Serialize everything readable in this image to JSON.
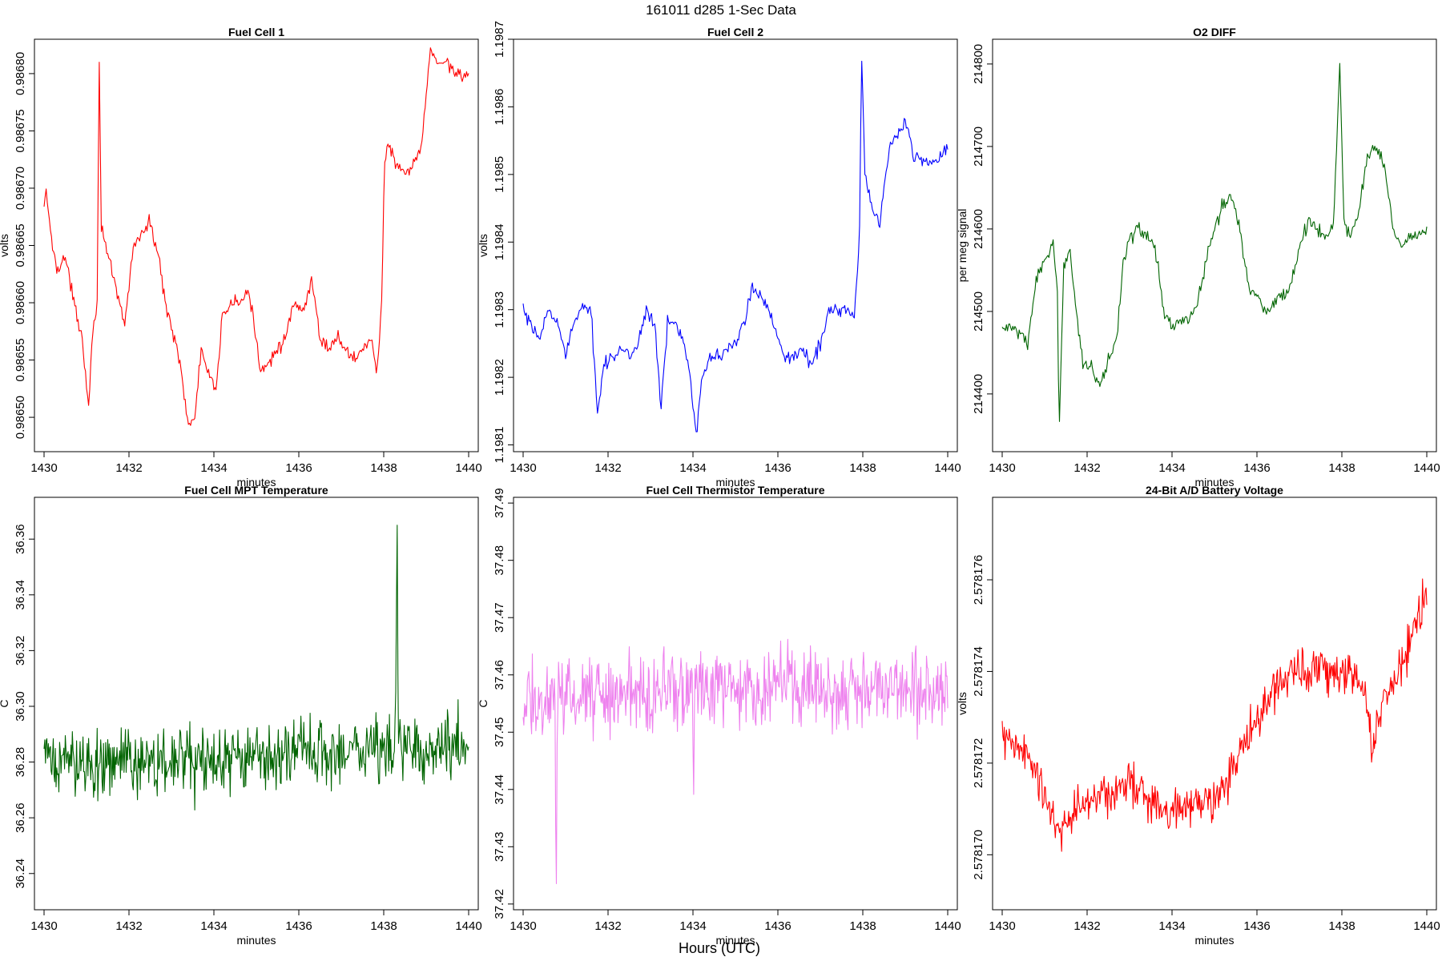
{
  "header": {
    "title": "161011    d285    1-Sec Data"
  },
  "footer": {
    "xlabel": "Hours (UTC)"
  },
  "chart_data": [
    {
      "type": "line",
      "title": "Fuel Cell 1",
      "xlabel": "minutes",
      "ylabel": "volts",
      "color": "#ff0000",
      "xlim": [
        1430,
        1440
      ],
      "ylim": [
        0.98647,
        0.98683
      ],
      "xticks": [
        1430,
        1432,
        1434,
        1436,
        1438,
        1440
      ],
      "yticks": [
        "0.98650",
        "0.98655",
        "0.98660",
        "0.98665",
        "0.98670",
        "0.98675",
        "0.98680"
      ],
      "keypoints": [
        [
          1430.0,
          0.98668
        ],
        [
          1430.05,
          0.9867
        ],
        [
          1430.15,
          0.98666
        ],
        [
          1430.3,
          0.98663
        ],
        [
          1430.5,
          0.98664
        ],
        [
          1430.7,
          0.9866
        ],
        [
          1430.9,
          0.98657
        ],
        [
          1431.05,
          0.98651
        ],
        [
          1431.15,
          0.98658
        ],
        [
          1431.25,
          0.9866
        ],
        [
          1431.3,
          0.98681
        ],
        [
          1431.35,
          0.98667
        ],
        [
          1431.5,
          0.98664
        ],
        [
          1431.7,
          0.98661
        ],
        [
          1431.9,
          0.98658
        ],
        [
          1432.1,
          0.98665
        ],
        [
          1432.3,
          0.98666
        ],
        [
          1432.5,
          0.98667
        ],
        [
          1432.7,
          0.98664
        ],
        [
          1432.85,
          0.9866
        ],
        [
          1433.0,
          0.98658
        ],
        [
          1433.2,
          0.98655
        ],
        [
          1433.4,
          0.98649
        ],
        [
          1433.55,
          0.9865
        ],
        [
          1433.7,
          0.98656
        ],
        [
          1433.85,
          0.98654
        ],
        [
          1434.05,
          0.98652
        ],
        [
          1434.2,
          0.98659
        ],
        [
          1434.4,
          0.9866
        ],
        [
          1434.6,
          0.9866
        ],
        [
          1434.8,
          0.98661
        ],
        [
          1435.0,
          0.98657
        ],
        [
          1435.1,
          0.98654
        ],
        [
          1435.3,
          0.98655
        ],
        [
          1435.5,
          0.98656
        ],
        [
          1435.7,
          0.98657
        ],
        [
          1435.9,
          0.9866
        ],
        [
          1436.1,
          0.98659
        ],
        [
          1436.3,
          0.98662
        ],
        [
          1436.5,
          0.98657
        ],
        [
          1436.7,
          0.98656
        ],
        [
          1436.9,
          0.98657
        ],
        [
          1437.1,
          0.98656
        ],
        [
          1437.3,
          0.98655
        ],
        [
          1437.5,
          0.98656
        ],
        [
          1437.7,
          0.98657
        ],
        [
          1437.85,
          0.98654
        ],
        [
          1437.95,
          0.9866
        ],
        [
          1438.02,
          0.98672
        ],
        [
          1438.1,
          0.98674
        ],
        [
          1438.3,
          0.98672
        ],
        [
          1438.5,
          0.98671
        ],
        [
          1438.7,
          0.98672
        ],
        [
          1438.9,
          0.98674
        ],
        [
          1439.0,
          0.98678
        ],
        [
          1439.1,
          0.98682
        ],
        [
          1439.3,
          0.98681
        ],
        [
          1439.5,
          0.98681
        ],
        [
          1439.7,
          0.9868
        ],
        [
          1439.9,
          0.9868
        ]
      ]
    },
    {
      "type": "line",
      "title": "Fuel Cell 2",
      "xlabel": "minutes",
      "ylabel": "volts",
      "color": "#0000ff",
      "xlim": [
        1430,
        1440
      ],
      "ylim": [
        1.19809,
        1.1987
      ],
      "xticks": [
        1430,
        1432,
        1434,
        1436,
        1438,
        1440
      ],
      "yticks": [
        "1.1981",
        "1.1982",
        "1.1983",
        "1.1984",
        "1.1985",
        "1.1986",
        "1.1987"
      ],
      "keypoints": [
        [
          1430.0,
          1.1983
        ],
        [
          1430.2,
          1.19827
        ],
        [
          1430.4,
          1.19826
        ],
        [
          1430.6,
          1.1983
        ],
        [
          1430.8,
          1.19828
        ],
        [
          1431.0,
          1.19824
        ],
        [
          1431.2,
          1.19828
        ],
        [
          1431.4,
          1.1983
        ],
        [
          1431.6,
          1.1983
        ],
        [
          1431.75,
          1.19815
        ],
        [
          1431.9,
          1.19822
        ],
        [
          1432.1,
          1.19823
        ],
        [
          1432.3,
          1.19824
        ],
        [
          1432.5,
          1.19823
        ],
        [
          1432.7,
          1.19825
        ],
        [
          1432.9,
          1.1983
        ],
        [
          1433.1,
          1.19828
        ],
        [
          1433.25,
          1.19815
        ],
        [
          1433.4,
          1.19828
        ],
        [
          1433.6,
          1.19828
        ],
        [
          1433.8,
          1.19825
        ],
        [
          1433.95,
          1.1982
        ],
        [
          1434.08,
          1.19811
        ],
        [
          1434.2,
          1.1982
        ],
        [
          1434.4,
          1.19823
        ],
        [
          1434.6,
          1.19823
        ],
        [
          1434.8,
          1.19824
        ],
        [
          1435.0,
          1.19825
        ],
        [
          1435.2,
          1.19828
        ],
        [
          1435.4,
          1.19833
        ],
        [
          1435.6,
          1.19832
        ],
        [
          1435.8,
          1.1983
        ],
        [
          1436.0,
          1.19826
        ],
        [
          1436.2,
          1.19823
        ],
        [
          1436.4,
          1.19823
        ],
        [
          1436.6,
          1.19824
        ],
        [
          1436.8,
          1.19822
        ],
        [
          1437.0,
          1.19825
        ],
        [
          1437.2,
          1.1983
        ],
        [
          1437.4,
          1.1983
        ],
        [
          1437.6,
          1.1983
        ],
        [
          1437.8,
          1.19829
        ],
        [
          1437.92,
          1.1984
        ],
        [
          1437.97,
          1.19868
        ],
        [
          1438.05,
          1.1985
        ],
        [
          1438.2,
          1.19845
        ],
        [
          1438.4,
          1.19843
        ],
        [
          1438.6,
          1.19853
        ],
        [
          1438.8,
          1.19856
        ],
        [
          1439.0,
          1.19858
        ],
        [
          1439.2,
          1.19853
        ],
        [
          1439.4,
          1.19852
        ],
        [
          1439.6,
          1.19852
        ],
        [
          1439.8,
          1.19852
        ],
        [
          1439.95,
          1.19854
        ]
      ]
    },
    {
      "type": "line",
      "title": "O2 DIFF",
      "xlabel": "minutes",
      "ylabel": "per meg signal",
      "color": "#006400",
      "xlim": [
        1430,
        1440
      ],
      "ylim": [
        214330,
        214830
      ],
      "xticks": [
        1430,
        1432,
        1434,
        1436,
        1438,
        1440
      ],
      "yticks": [
        "214400",
        "214500",
        "214600",
        "214700",
        "214800"
      ],
      "keypoints": [
        [
          1430.0,
          214480
        ],
        [
          1430.3,
          214480
        ],
        [
          1430.6,
          214460
        ],
        [
          1430.8,
          214540
        ],
        [
          1431.0,
          214560
        ],
        [
          1431.2,
          214580
        ],
        [
          1431.3,
          214520
        ],
        [
          1431.34,
          214345
        ],
        [
          1431.45,
          214560
        ],
        [
          1431.6,
          214570
        ],
        [
          1431.75,
          214500
        ],
        [
          1431.9,
          214440
        ],
        [
          1432.1,
          214430
        ],
        [
          1432.3,
          214410
        ],
        [
          1432.5,
          214440
        ],
        [
          1432.7,
          214470
        ],
        [
          1432.85,
          214560
        ],
        [
          1433.0,
          214590
        ],
        [
          1433.2,
          214600
        ],
        [
          1433.4,
          214590
        ],
        [
          1433.6,
          214580
        ],
        [
          1433.8,
          214500
        ],
        [
          1434.0,
          214480
        ],
        [
          1434.2,
          214490
        ],
        [
          1434.4,
          214490
        ],
        [
          1434.6,
          214510
        ],
        [
          1434.8,
          214560
        ],
        [
          1435.0,
          214600
        ],
        [
          1435.2,
          214630
        ],
        [
          1435.4,
          214640
        ],
        [
          1435.6,
          214600
        ],
        [
          1435.8,
          214530
        ],
        [
          1436.0,
          214520
        ],
        [
          1436.2,
          214500
        ],
        [
          1436.4,
          214510
        ],
        [
          1436.6,
          214520
        ],
        [
          1436.8,
          214530
        ],
        [
          1437.0,
          214580
        ],
        [
          1437.2,
          214610
        ],
        [
          1437.4,
          214600
        ],
        [
          1437.6,
          214590
        ],
        [
          1437.8,
          214600
        ],
        [
          1437.95,
          214800
        ],
        [
          1438.05,
          214610
        ],
        [
          1438.2,
          214590
        ],
        [
          1438.4,
          214620
        ],
        [
          1438.6,
          214690
        ],
        [
          1438.8,
          214700
        ],
        [
          1439.0,
          214680
        ],
        [
          1439.2,
          214600
        ],
        [
          1439.4,
          214580
        ],
        [
          1439.6,
          214590
        ],
        [
          1439.8,
          214590
        ],
        [
          1439.95,
          214600
        ]
      ]
    },
    {
      "type": "line",
      "title": "Fuel Cell MPT Temperature",
      "xlabel": "minutes",
      "ylabel": "C",
      "color": "#006400",
      "xlim": [
        1430,
        1440
      ],
      "ylim": [
        36.227,
        36.375
      ],
      "xticks": [
        1430,
        1432,
        1434,
        1436,
        1438,
        1440
      ],
      "yticks": [
        "36.24",
        "36.26",
        "36.28",
        "36.30",
        "36.32",
        "36.34",
        "36.36"
      ],
      "keypoints": [
        [
          1430.0,
          36.28
        ],
        [
          1434.0,
          36.28
        ],
        [
          1437.0,
          36.284
        ],
        [
          1438.28,
          36.286
        ],
        [
          1438.31,
          36.37
        ],
        [
          1438.34,
          36.286
        ],
        [
          1440.0,
          36.286
        ]
      ],
      "noise": 0.018
    },
    {
      "type": "line",
      "title": "Fuel Cell Thermistor Temperature",
      "xlabel": "minutes",
      "ylabel": "C",
      "color": "#ee82ee",
      "xlim": [
        1430,
        1440
      ],
      "ylim": [
        37.419,
        37.491
      ],
      "xticks": [
        1430,
        1432,
        1434,
        1436,
        1438,
        1440
      ],
      "yticks": [
        "37.42",
        "37.43",
        "37.44",
        "37.45",
        "37.46",
        "37.47",
        "37.48",
        "37.49"
      ],
      "keypoints": [
        [
          1430.0,
          37.455
        ],
        [
          1430.75,
          37.456
        ],
        [
          1430.78,
          37.422
        ],
        [
          1430.81,
          37.456
        ],
        [
          1433.98,
          37.458
        ],
        [
          1434.01,
          37.434
        ],
        [
          1434.04,
          37.458
        ],
        [
          1440.0,
          37.458
        ]
      ],
      "noise": 0.01
    },
    {
      "type": "line",
      "title": "24-Bit A/D Battery Voltage",
      "xlabel": "minutes",
      "ylabel": "volts",
      "color": "#ff0000",
      "xlim": [
        1430,
        1440
      ],
      "ylim": [
        2.5781688,
        2.5781778
      ],
      "xticks": [
        1430,
        1432,
        1434,
        1436,
        1438,
        1440
      ],
      "yticks": [
        "2.578170",
        "2.578172",
        "2.578174",
        "2.578176"
      ],
      "keypoints": [
        [
          1430.0,
          2.5781725
        ],
        [
          1430.6,
          2.5781722
        ],
        [
          1431.0,
          2.5781712
        ],
        [
          1431.4,
          2.5781705
        ],
        [
          1432.0,
          2.5781712
        ],
        [
          1433.0,
          2.5781715
        ],
        [
          1434.0,
          2.578171
        ],
        [
          1435.0,
          2.5781712
        ],
        [
          1435.5,
          2.578172
        ],
        [
          1436.0,
          2.578173
        ],
        [
          1436.5,
          2.5781738
        ],
        [
          1437.0,
          2.578174
        ],
        [
          1438.0,
          2.578174
        ],
        [
          1438.5,
          2.5781738
        ],
        [
          1438.7,
          2.5781722
        ],
        [
          1439.0,
          2.5781735
        ],
        [
          1439.5,
          2.5781742
        ],
        [
          1439.9,
          2.5781755
        ]
      ],
      "noise": 7e-07
    }
  ]
}
